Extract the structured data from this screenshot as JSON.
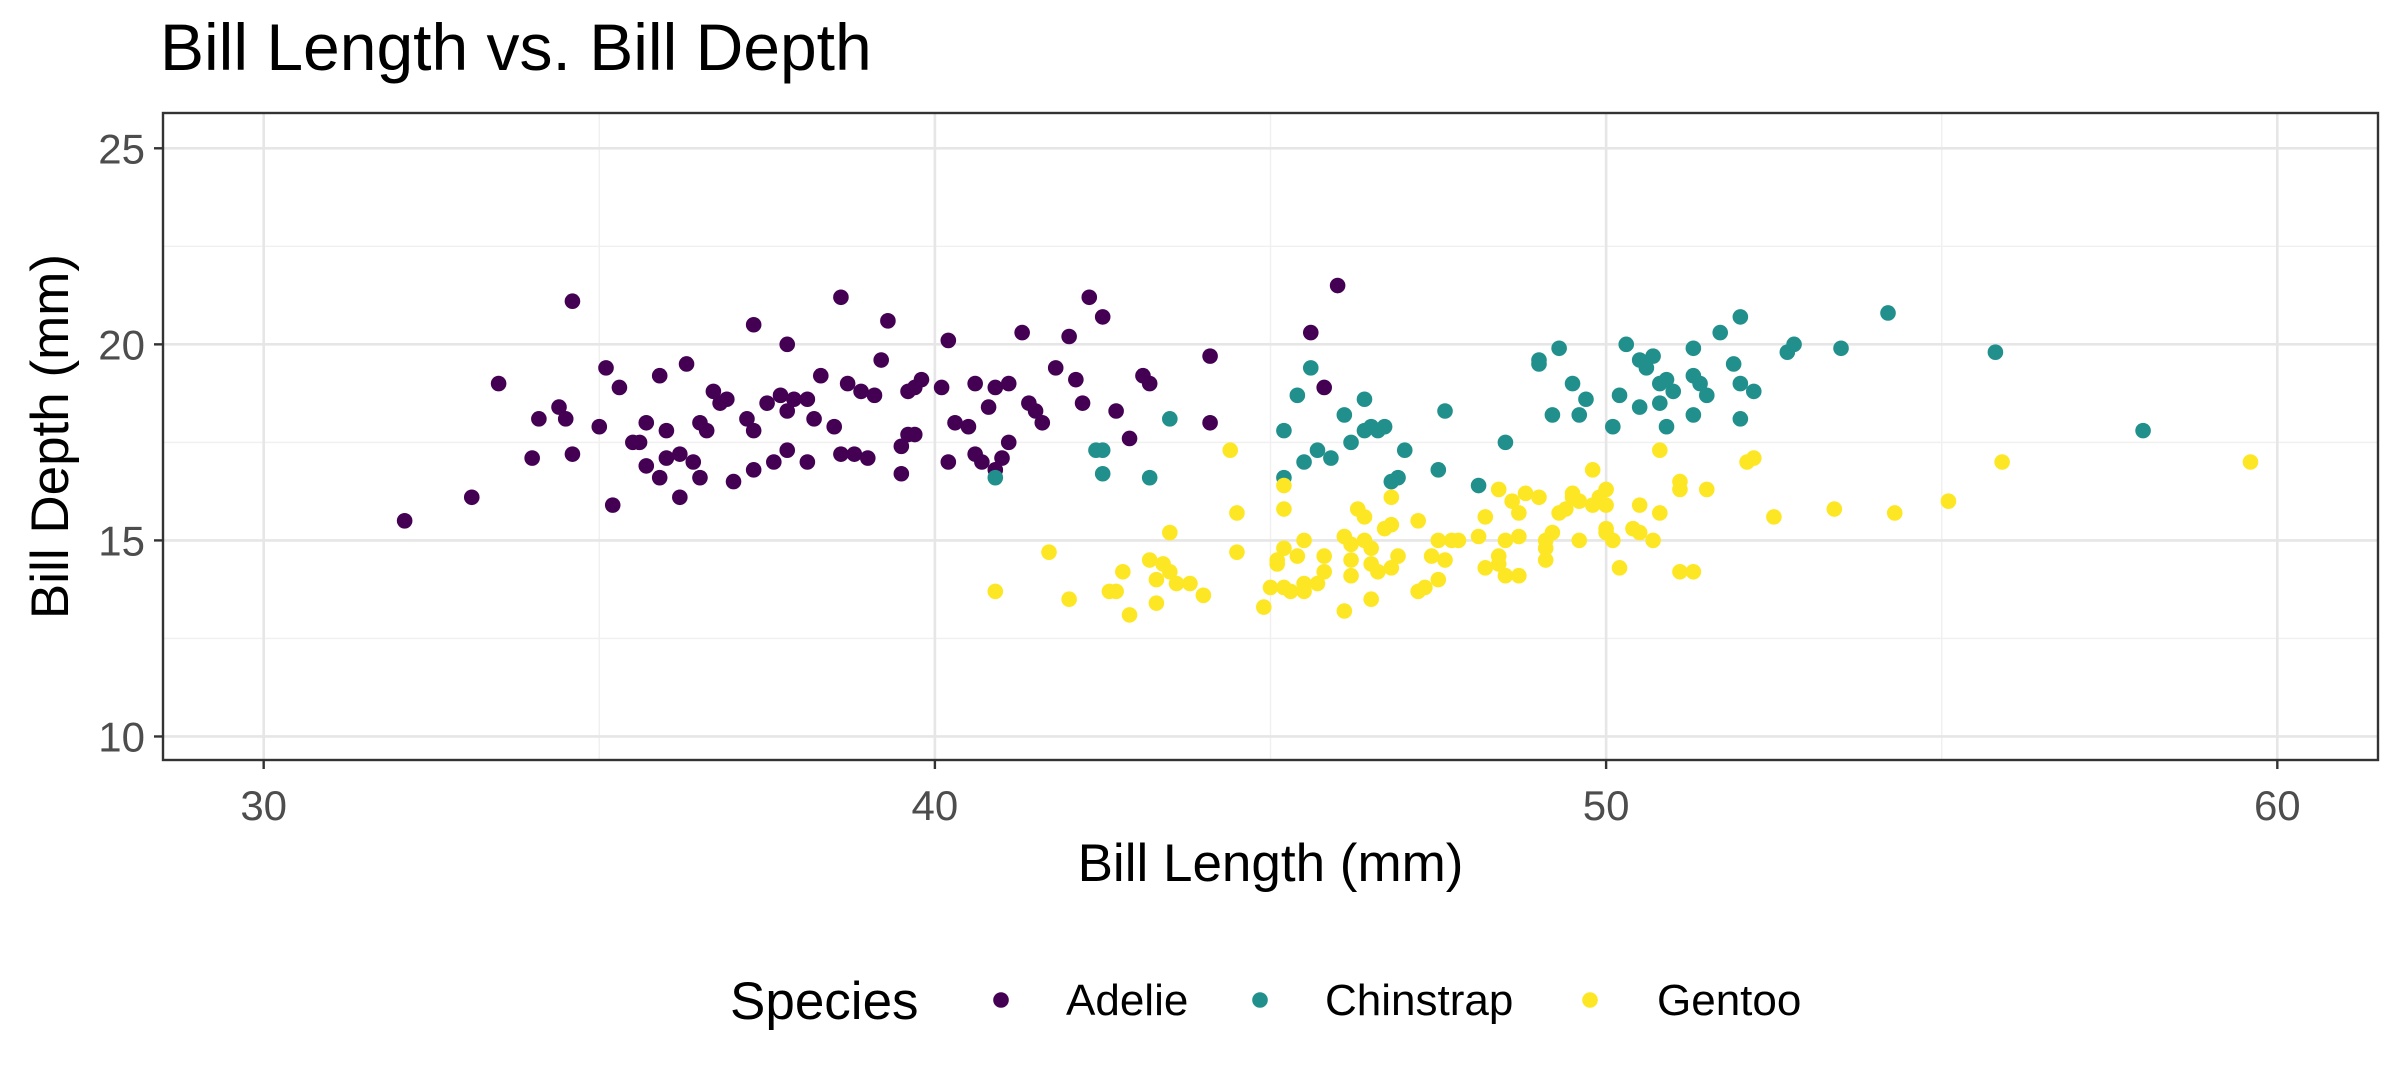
{
  "chart_data": {
    "type": "scatter",
    "title": "Bill Length vs. Bill Depth",
    "xlabel": "Bill Length (mm)",
    "ylabel": "Bill Depth (mm)",
    "xlim": [
      28.5,
      61.5
    ],
    "ylim": [
      9.4,
      25.9
    ],
    "x_ticks": [
      30,
      40,
      50,
      60
    ],
    "y_ticks": [
      10,
      15,
      20,
      25
    ],
    "x_tick_labels": [
      "30",
      "40",
      "50",
      "60"
    ],
    "y_tick_labels": [
      "10",
      "15",
      "20",
      "25"
    ],
    "grid": true,
    "legend": {
      "title": "Species",
      "position": "bottom"
    },
    "series": [
      {
        "name": "Adelie",
        "color": "#440154",
        "points": [
          [
            32.1,
            15.5
          ],
          [
            33.1,
            16.1
          ],
          [
            33.5,
            19.0
          ],
          [
            34.0,
            17.1
          ],
          [
            34.1,
            18.1
          ],
          [
            34.4,
            18.4
          ],
          [
            34.5,
            18.1
          ],
          [
            34.6,
            17.2
          ],
          [
            34.6,
            21.1
          ],
          [
            35.0,
            17.9
          ],
          [
            35.1,
            19.4
          ],
          [
            35.2,
            15.9
          ],
          [
            35.3,
            18.9
          ],
          [
            35.5,
            17.5
          ],
          [
            35.6,
            17.5
          ],
          [
            35.7,
            16.9
          ],
          [
            35.7,
            18.0
          ],
          [
            35.9,
            16.6
          ],
          [
            35.9,
            19.2
          ],
          [
            36.0,
            17.1
          ],
          [
            36.0,
            17.8
          ],
          [
            36.2,
            16.1
          ],
          [
            36.2,
            17.2
          ],
          [
            36.3,
            19.5
          ],
          [
            36.4,
            17.0
          ],
          [
            36.5,
            16.6
          ],
          [
            36.5,
            18.0
          ],
          [
            36.6,
            17.8
          ],
          [
            36.7,
            18.8
          ],
          [
            36.8,
            18.5
          ],
          [
            36.9,
            18.6
          ],
          [
            37.0,
            16.5
          ],
          [
            37.2,
            18.1
          ],
          [
            37.3,
            16.8
          ],
          [
            37.3,
            17.8
          ],
          [
            37.3,
            20.5
          ],
          [
            37.5,
            18.5
          ],
          [
            37.6,
            17.0
          ],
          [
            37.7,
            18.7
          ],
          [
            37.8,
            17.3
          ],
          [
            37.8,
            18.3
          ],
          [
            37.8,
            20.0
          ],
          [
            37.9,
            18.6
          ],
          [
            38.1,
            17.0
          ],
          [
            38.1,
            18.6
          ],
          [
            38.2,
            18.1
          ],
          [
            38.3,
            19.2
          ],
          [
            38.5,
            17.9
          ],
          [
            38.6,
            17.2
          ],
          [
            38.6,
            21.2
          ],
          [
            38.7,
            19.0
          ],
          [
            38.8,
            17.2
          ],
          [
            38.9,
            18.8
          ],
          [
            39.0,
            17.1
          ],
          [
            39.1,
            18.7
          ],
          [
            39.2,
            19.6
          ],
          [
            39.3,
            20.6
          ],
          [
            39.5,
            16.7
          ],
          [
            39.5,
            17.4
          ],
          [
            39.6,
            17.7
          ],
          [
            39.6,
            18.8
          ],
          [
            39.7,
            17.7
          ],
          [
            39.7,
            18.9
          ],
          [
            39.8,
            19.1
          ],
          [
            40.1,
            18.9
          ],
          [
            40.2,
            17.0
          ],
          [
            40.2,
            20.1
          ],
          [
            40.3,
            18.0
          ],
          [
            40.5,
            17.9
          ],
          [
            40.6,
            17.2
          ],
          [
            40.6,
            19.0
          ],
          [
            40.7,
            17.0
          ],
          [
            40.8,
            18.4
          ],
          [
            40.9,
            16.8
          ],
          [
            40.9,
            18.9
          ],
          [
            41.0,
            17.1
          ],
          [
            41.1,
            17.5
          ],
          [
            41.1,
            19.0
          ],
          [
            41.3,
            20.3
          ],
          [
            41.4,
            18.5
          ],
          [
            41.5,
            18.3
          ],
          [
            41.6,
            18.0
          ],
          [
            41.8,
            19.4
          ],
          [
            42.0,
            20.2
          ],
          [
            42.1,
            19.1
          ],
          [
            42.2,
            18.5
          ],
          [
            42.3,
            21.2
          ],
          [
            42.5,
            20.7
          ],
          [
            42.7,
            18.3
          ],
          [
            42.9,
            17.6
          ],
          [
            43.1,
            19.2
          ],
          [
            43.2,
            19.0
          ],
          [
            44.1,
            19.7
          ],
          [
            44.1,
            18.0
          ],
          [
            45.8,
            18.9
          ],
          [
            46.0,
            21.5
          ],
          [
            45.6,
            20.3
          ]
        ]
      },
      {
        "name": "Chinstrap",
        "color": "#21908d",
        "points": [
          [
            40.9,
            16.6
          ],
          [
            42.4,
            17.3
          ],
          [
            42.5,
            16.7
          ],
          [
            42.5,
            17.3
          ],
          [
            43.2,
            16.6
          ],
          [
            43.5,
            18.1
          ],
          [
            45.2,
            17.8
          ],
          [
            45.2,
            16.6
          ],
          [
            45.4,
            18.7
          ],
          [
            45.5,
            17.0
          ],
          [
            45.6,
            19.4
          ],
          [
            45.7,
            17.3
          ],
          [
            45.9,
            17.1
          ],
          [
            46.1,
            18.2
          ],
          [
            46.2,
            17.5
          ],
          [
            46.4,
            18.6
          ],
          [
            46.4,
            17.8
          ],
          [
            46.5,
            17.9
          ],
          [
            46.6,
            17.8
          ],
          [
            46.7,
            17.9
          ],
          [
            46.8,
            16.5
          ],
          [
            46.9,
            16.6
          ],
          [
            47.0,
            17.3
          ],
          [
            47.5,
            16.8
          ],
          [
            47.6,
            18.3
          ],
          [
            48.1,
            16.4
          ],
          [
            48.5,
            17.5
          ],
          [
            49.0,
            19.5
          ],
          [
            49.0,
            19.6
          ],
          [
            49.2,
            18.2
          ],
          [
            49.3,
            19.9
          ],
          [
            49.5,
            19.0
          ],
          [
            49.6,
            18.2
          ],
          [
            49.7,
            18.6
          ],
          [
            50.1,
            17.9
          ],
          [
            50.2,
            18.7
          ],
          [
            50.3,
            20.0
          ],
          [
            50.5,
            18.4
          ],
          [
            50.5,
            19.6
          ],
          [
            50.6,
            19.4
          ],
          [
            50.7,
            19.7
          ],
          [
            50.8,
            18.5
          ],
          [
            50.8,
            19.0
          ],
          [
            50.9,
            17.9
          ],
          [
            50.9,
            19.1
          ],
          [
            51.0,
            18.8
          ],
          [
            51.3,
            18.2
          ],
          [
            51.3,
            19.2
          ],
          [
            51.3,
            19.9
          ],
          [
            51.4,
            19.0
          ],
          [
            51.5,
            18.7
          ],
          [
            51.7,
            20.3
          ],
          [
            51.9,
            19.5
          ],
          [
            52.0,
            18.1
          ],
          [
            52.0,
            19.0
          ],
          [
            52.0,
            20.7
          ],
          [
            52.2,
            18.8
          ],
          [
            52.7,
            19.8
          ],
          [
            52.8,
            20.0
          ],
          [
            53.5,
            19.9
          ],
          [
            54.2,
            20.8
          ],
          [
            55.8,
            19.8
          ],
          [
            58.0,
            17.8
          ]
        ]
      },
      {
        "name": "Gentoo",
        "color": "#fde725",
        "points": [
          [
            40.9,
            13.7
          ],
          [
            41.7,
            14.7
          ],
          [
            42.0,
            13.5
          ],
          [
            42.6,
            13.7
          ],
          [
            42.7,
            13.7
          ],
          [
            42.8,
            14.2
          ],
          [
            42.9,
            13.1
          ],
          [
            43.2,
            14.5
          ],
          [
            43.3,
            13.4
          ],
          [
            43.3,
            14.0
          ],
          [
            43.4,
            14.4
          ],
          [
            43.5,
            14.2
          ],
          [
            43.5,
            15.2
          ],
          [
            43.6,
            13.9
          ],
          [
            43.8,
            13.9
          ],
          [
            44.0,
            13.6
          ],
          [
            44.4,
            17.3
          ],
          [
            44.5,
            14.7
          ],
          [
            44.5,
            15.7
          ],
          [
            44.9,
            13.3
          ],
          [
            45.0,
            13.8
          ],
          [
            45.1,
            14.4
          ],
          [
            45.1,
            14.5
          ],
          [
            45.2,
            13.8
          ],
          [
            45.2,
            14.8
          ],
          [
            45.2,
            15.8
          ],
          [
            45.2,
            16.4
          ],
          [
            45.3,
            13.7
          ],
          [
            45.4,
            14.6
          ],
          [
            45.5,
            13.7
          ],
          [
            45.5,
            13.9
          ],
          [
            45.5,
            15.0
          ],
          [
            45.7,
            13.9
          ],
          [
            45.8,
            14.2
          ],
          [
            45.8,
            14.6
          ],
          [
            46.1,
            13.2
          ],
          [
            46.1,
            15.1
          ],
          [
            46.2,
            14.1
          ],
          [
            46.2,
            14.5
          ],
          [
            46.2,
            14.9
          ],
          [
            46.3,
            15.8
          ],
          [
            46.4,
            15.0
          ],
          [
            46.4,
            15.6
          ],
          [
            46.5,
            13.5
          ],
          [
            46.5,
            14.4
          ],
          [
            46.5,
            14.8
          ],
          [
            46.6,
            14.2
          ],
          [
            46.7,
            15.3
          ],
          [
            46.8,
            14.3
          ],
          [
            46.8,
            15.4
          ],
          [
            46.8,
            16.1
          ],
          [
            46.9,
            14.6
          ],
          [
            47.2,
            13.7
          ],
          [
            47.2,
            15.5
          ],
          [
            47.3,
            13.8
          ],
          [
            47.4,
            14.6
          ],
          [
            47.5,
            14.0
          ],
          [
            47.5,
            15.0
          ],
          [
            47.6,
            14.5
          ],
          [
            47.7,
            15.0
          ],
          [
            47.8,
            15.0
          ],
          [
            48.1,
            15.1
          ],
          [
            48.2,
            14.3
          ],
          [
            48.2,
            15.6
          ],
          [
            48.4,
            14.4
          ],
          [
            48.4,
            14.6
          ],
          [
            48.4,
            16.3
          ],
          [
            48.5,
            14.1
          ],
          [
            48.5,
            15.0
          ],
          [
            48.6,
            16.0
          ],
          [
            48.7,
            14.1
          ],
          [
            48.7,
            15.1
          ],
          [
            48.7,
            15.7
          ],
          [
            48.8,
            16.2
          ],
          [
            49.0,
            16.1
          ],
          [
            49.1,
            14.5
          ],
          [
            49.1,
            14.8
          ],
          [
            49.1,
            15.0
          ],
          [
            49.2,
            15.2
          ],
          [
            49.3,
            15.7
          ],
          [
            49.4,
            15.8
          ],
          [
            49.5,
            16.1
          ],
          [
            49.5,
            16.2
          ],
          [
            49.6,
            15.0
          ],
          [
            49.6,
            16.0
          ],
          [
            49.8,
            15.9
          ],
          [
            49.8,
            16.8
          ],
          [
            49.9,
            16.1
          ],
          [
            50.0,
            15.2
          ],
          [
            50.0,
            15.3
          ],
          [
            50.0,
            15.9
          ],
          [
            50.0,
            16.3
          ],
          [
            50.1,
            15.0
          ],
          [
            50.2,
            14.3
          ],
          [
            50.4,
            15.3
          ],
          [
            50.5,
            15.2
          ],
          [
            50.5,
            15.9
          ],
          [
            50.7,
            15.0
          ],
          [
            50.8,
            15.7
          ],
          [
            50.8,
            17.3
          ],
          [
            51.1,
            14.2
          ],
          [
            51.1,
            16.3
          ],
          [
            51.1,
            16.5
          ],
          [
            51.5,
            16.3
          ],
          [
            51.3,
            14.2
          ],
          [
            52.1,
            17.0
          ],
          [
            52.2,
            17.1
          ],
          [
            52.5,
            15.6
          ],
          [
            53.4,
            15.8
          ],
          [
            54.3,
            15.7
          ],
          [
            55.1,
            16.0
          ],
          [
            55.9,
            17.0
          ],
          [
            59.6,
            17.0
          ]
        ]
      }
    ]
  }
}
